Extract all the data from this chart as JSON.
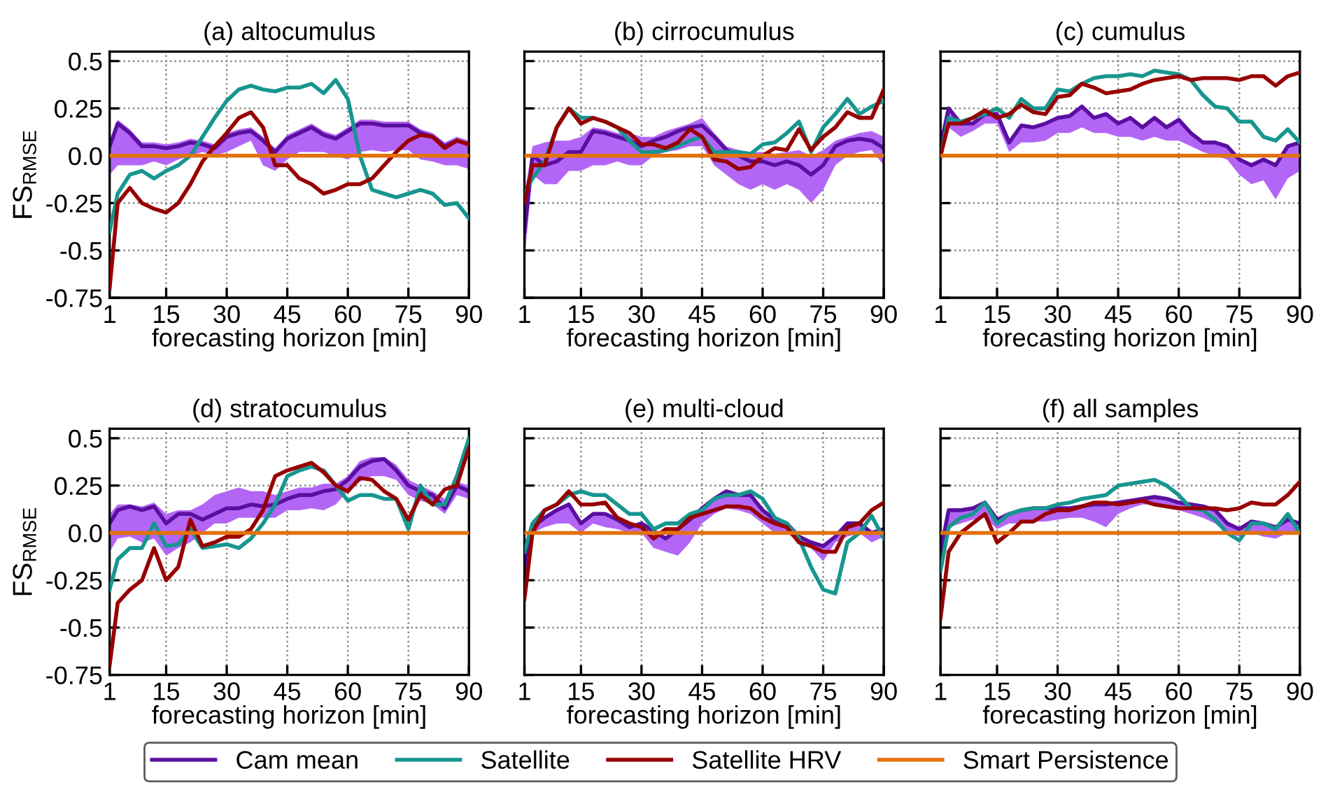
{
  "chart_data": [
    {
      "type": "line",
      "title": "(a) altocumulus",
      "xlabel": "forecasting horizon [min]",
      "ylabel": "FS$_{RMSE}$",
      "xlim": [
        1,
        90
      ],
      "ylim": [
        -0.75,
        0.55
      ],
      "xticks": [
        1,
        15,
        30,
        45,
        60,
        75,
        90
      ],
      "yticks": [
        {
          "value": -0.75,
          "label": "-0.75"
        },
        {
          "value": -0.5,
          "label": "-0.5"
        },
        {
          "value": -0.25,
          "label": "-0.25"
        },
        {
          "value": 0,
          "label": "0.0"
        },
        {
          "value": 0.25,
          "label": "0.25"
        },
        {
          "value": 0.5,
          "label": "0.5"
        }
      ],
      "grid": true,
      "legend": "bottom",
      "line_style": "solid",
      "marker": "none",
      "x": [
        1,
        3,
        6,
        9,
        12,
        15,
        18,
        21,
        24,
        27,
        30,
        33,
        36,
        39,
        42,
        45,
        48,
        51,
        54,
        57,
        60,
        63,
        66,
        69,
        72,
        75,
        78,
        81,
        84,
        87,
        90
      ],
      "series": [
        {
          "name": "Cam mean",
          "color": "#5a0fa0",
          "values": [
            0.05,
            0.17,
            0.12,
            0.05,
            0.05,
            0.04,
            0.05,
            0.07,
            0.06,
            0.04,
            0.1,
            0.12,
            0.13,
            0.08,
            0.02,
            0.09,
            0.12,
            0.15,
            0.11,
            0.09,
            0.13,
            0.17,
            0.17,
            0.16,
            0.16,
            0.16,
            0.12,
            0.1,
            0.05,
            0.08,
            0.06
          ],
          "lower": [
            -0.1,
            -0.05,
            -0.05,
            -0.05,
            -0.03,
            -0.05,
            -0.02,
            0.0,
            0.02,
            0.0,
            0.02,
            0.05,
            0.08,
            -0.05,
            -0.08,
            -0.02,
            0.02,
            0.02,
            0.02,
            0.0,
            -0.02,
            0.02,
            0.03,
            0.02,
            0.03,
            0.03,
            -0.02,
            -0.03,
            -0.05,
            -0.05,
            -0.07
          ],
          "upper": [
            0.07,
            0.19,
            0.14,
            0.07,
            0.07,
            0.06,
            0.07,
            0.09,
            0.08,
            0.06,
            0.12,
            0.14,
            0.15,
            0.1,
            0.04,
            0.11,
            0.14,
            0.17,
            0.13,
            0.11,
            0.15,
            0.19,
            0.19,
            0.18,
            0.18,
            0.18,
            0.14,
            0.12,
            0.07,
            0.1,
            0.08
          ]
        },
        {
          "name": "Satellite",
          "color": "#16968f",
          "values": [
            -0.4,
            -0.2,
            -0.1,
            -0.08,
            -0.12,
            -0.08,
            -0.05,
            0.0,
            0.1,
            0.2,
            0.29,
            0.35,
            0.37,
            0.35,
            0.34,
            0.36,
            0.36,
            0.38,
            0.33,
            0.4,
            0.3,
            0.0,
            -0.18,
            -0.2,
            -0.22,
            -0.2,
            -0.18,
            -0.2,
            -0.26,
            -0.25,
            -0.33
          ]
        },
        {
          "name": "Satellite HRV",
          "color": "#980000",
          "values": [
            -0.7,
            -0.25,
            -0.17,
            -0.25,
            -0.28,
            -0.3,
            -0.25,
            -0.15,
            -0.03,
            0.05,
            0.12,
            0.2,
            0.23,
            0.15,
            -0.05,
            -0.05,
            -0.12,
            -0.15,
            -0.2,
            -0.18,
            -0.15,
            -0.15,
            -0.12,
            -0.05,
            0.02,
            0.08,
            0.11,
            0.1,
            0.04,
            0.08,
            0.06
          ]
        },
        {
          "name": "Smart Persistence",
          "color": "#e2720f",
          "values": [
            0,
            0,
            0,
            0,
            0,
            0,
            0,
            0,
            0,
            0,
            0,
            0,
            0,
            0,
            0,
            0,
            0,
            0,
            0,
            0,
            0,
            0,
            0,
            0,
            0,
            0,
            0,
            0,
            0,
            0,
            0
          ]
        }
      ]
    },
    {
      "type": "line",
      "title": "(b) cirrocumulus",
      "xlabel": "forecasting horizon [min]",
      "xlim": [
        1,
        90
      ],
      "ylim": [
        -0.75,
        0.55
      ],
      "xticks": [
        1,
        15,
        30,
        45,
        60,
        75,
        90
      ],
      "yticks": [
        {
          "value": -0.75,
          "label": null
        },
        {
          "value": -0.5,
          "label": null
        },
        {
          "value": -0.25,
          "label": null
        },
        {
          "value": 0,
          "label": null
        },
        {
          "value": 0.25,
          "label": null
        },
        {
          "value": 0.5,
          "label": null
        }
      ],
      "tick_labels": "x",
      "grid": true,
      "line_style": "solid",
      "marker": "none",
      "x": [
        1,
        3,
        6,
        9,
        12,
        15,
        18,
        21,
        24,
        27,
        30,
        33,
        36,
        39,
        42,
        45,
        48,
        51,
        54,
        57,
        60,
        63,
        66,
        69,
        72,
        75,
        78,
        81,
        84,
        87,
        90
      ],
      "series": [
        {
          "color": "#5a0fa0",
          "values": [
            -0.4,
            0.0,
            -0.05,
            -0.03,
            0.02,
            0.02,
            0.13,
            0.12,
            0.1,
            0.08,
            0.05,
            0.08,
            0.1,
            0.13,
            0.15,
            0.16,
            0.1,
            0.03,
            0.0,
            -0.03,
            -0.03,
            -0.05,
            -0.03,
            -0.05,
            -0.1,
            -0.05,
            0.05,
            0.08,
            0.09,
            0.08,
            0.04
          ],
          "lower": [
            -0.55,
            -0.1,
            -0.15,
            -0.15,
            -0.08,
            -0.08,
            -0.05,
            -0.05,
            -0.03,
            -0.05,
            -0.05,
            0.0,
            0.02,
            0.03,
            0.05,
            0.05,
            -0.05,
            -0.1,
            -0.15,
            -0.18,
            -0.15,
            -0.18,
            -0.15,
            -0.18,
            -0.25,
            -0.18,
            -0.05,
            0.0,
            0.02,
            0.03,
            -0.05
          ],
          "upper": [
            -0.2,
            0.05,
            0.07,
            0.08,
            0.08,
            0.1,
            0.15,
            0.14,
            0.12,
            0.12,
            0.1,
            0.1,
            0.13,
            0.15,
            0.17,
            0.2,
            0.12,
            0.05,
            0.03,
            0.02,
            0.02,
            0.01,
            0.02,
            0.03,
            0.0,
            0.03,
            0.08,
            0.1,
            0.12,
            0.13,
            0.1
          ]
        },
        {
          "color": "#16968f",
          "values": [
            -0.2,
            -0.12,
            -0.03,
            0.15,
            0.25,
            0.2,
            0.2,
            0.18,
            0.15,
            0.08,
            0.02,
            0.02,
            0.03,
            0.05,
            0.08,
            0.1,
            0.02,
            0.02,
            0.02,
            0.01,
            0.06,
            0.07,
            0.12,
            0.18,
            0.02,
            0.15,
            0.22,
            0.3,
            0.22,
            0.26,
            0.29
          ]
        },
        {
          "color": "#980000",
          "values": [
            -0.25,
            -0.05,
            -0.05,
            0.15,
            0.25,
            0.17,
            0.2,
            0.18,
            0.15,
            0.12,
            0.06,
            0.06,
            0.04,
            0.07,
            0.14,
            0.1,
            -0.02,
            -0.03,
            -0.07,
            -0.06,
            0.0,
            0.04,
            0.03,
            0.14,
            0.03,
            0.1,
            0.15,
            0.23,
            0.2,
            0.2,
            0.35
          ]
        },
        {
          "color": "#e2720f",
          "values": [
            0,
            0,
            0,
            0,
            0,
            0,
            0,
            0,
            0,
            0,
            0,
            0,
            0,
            0,
            0,
            0,
            0,
            0,
            0,
            0,
            0,
            0,
            0,
            0,
            0,
            0,
            0,
            0,
            0,
            0,
            0
          ]
        }
      ]
    },
    {
      "type": "line",
      "title": "(c) cumulus",
      "xlabel": "forecasting horizon [min]",
      "xlim": [
        1,
        90
      ],
      "ylim": [
        -0.75,
        0.55
      ],
      "xticks": [
        1,
        15,
        30,
        45,
        60,
        75,
        90
      ],
      "yticks": [
        {
          "value": -0.75,
          "label": null
        },
        {
          "value": -0.5,
          "label": null
        },
        {
          "value": -0.25,
          "label": null
        },
        {
          "value": 0,
          "label": null
        },
        {
          "value": 0.25,
          "label": null
        },
        {
          "value": 0.5,
          "label": null
        }
      ],
      "tick_labels": "x",
      "grid": true,
      "line_style": "solid",
      "marker": "none",
      "x": [
        1,
        3,
        6,
        9,
        12,
        15,
        18,
        21,
        24,
        27,
        30,
        33,
        36,
        39,
        42,
        45,
        48,
        51,
        54,
        57,
        60,
        63,
        66,
        69,
        72,
        75,
        78,
        81,
        84,
        87,
        90
      ],
      "series": [
        {
          "color": "#5a0fa0",
          "values": [
            0.05,
            0.25,
            0.17,
            0.17,
            0.22,
            0.22,
            0.07,
            0.16,
            0.15,
            0.17,
            0.2,
            0.21,
            0.26,
            0.2,
            0.22,
            0.17,
            0.2,
            0.15,
            0.2,
            0.15,
            0.19,
            0.12,
            0.07,
            0.07,
            0.05,
            -0.02,
            -0.05,
            -0.02,
            -0.05,
            0.05,
            0.07
          ],
          "lower": [
            -0.05,
            0.15,
            0.1,
            0.13,
            0.17,
            0.17,
            0.02,
            0.07,
            0.07,
            0.08,
            0.12,
            0.12,
            0.15,
            0.12,
            0.12,
            0.1,
            0.1,
            0.08,
            0.1,
            0.08,
            0.08,
            0.05,
            0.02,
            0.0,
            -0.02,
            -0.1,
            -0.15,
            -0.13,
            -0.23,
            -0.12,
            -0.08
          ],
          "upper": [
            0.06,
            0.26,
            0.18,
            0.18,
            0.23,
            0.23,
            0.08,
            0.17,
            0.16,
            0.18,
            0.21,
            0.22,
            0.27,
            0.21,
            0.23,
            0.18,
            0.21,
            0.16,
            0.21,
            0.16,
            0.2,
            0.13,
            0.08,
            0.08,
            0.06,
            -0.01,
            -0.04,
            -0.01,
            -0.04,
            0.06,
            0.08
          ]
        },
        {
          "color": "#16968f",
          "values": [
            0.0,
            0.2,
            0.18,
            0.2,
            0.22,
            0.25,
            0.2,
            0.3,
            0.25,
            0.25,
            0.35,
            0.34,
            0.38,
            0.41,
            0.42,
            0.42,
            0.43,
            0.42,
            0.45,
            0.44,
            0.43,
            0.4,
            0.32,
            0.26,
            0.25,
            0.18,
            0.18,
            0.1,
            0.08,
            0.14,
            0.07
          ]
        },
        {
          "color": "#980000",
          "values": [
            0.0,
            0.17,
            0.17,
            0.2,
            0.24,
            0.2,
            0.22,
            0.27,
            0.23,
            0.22,
            0.31,
            0.32,
            0.38,
            0.36,
            0.33,
            0.34,
            0.35,
            0.38,
            0.4,
            0.41,
            0.42,
            0.4,
            0.41,
            0.41,
            0.41,
            0.4,
            0.42,
            0.42,
            0.37,
            0.42,
            0.44
          ]
        },
        {
          "color": "#e2720f",
          "values": [
            0,
            0,
            0,
            0,
            0,
            0,
            0,
            0,
            0,
            0,
            0,
            0,
            0,
            0,
            0,
            0,
            0,
            0,
            0,
            0,
            0,
            0,
            0,
            0,
            0,
            0,
            0,
            0,
            0,
            0,
            0
          ]
        }
      ]
    },
    {
      "type": "line",
      "title": "(d) stratocumulus",
      "xlabel": "forecasting horizon [min]",
      "ylabel": "FS$_{RMSE}$",
      "xlim": [
        1,
        90
      ],
      "ylim": [
        -0.75,
        0.55
      ],
      "xticks": [
        1,
        15,
        30,
        45,
        60,
        75,
        90
      ],
      "yticks": [
        {
          "value": -0.75,
          "label": "-0.75"
        },
        {
          "value": -0.5,
          "label": "-0.5"
        },
        {
          "value": -0.25,
          "label": "-0.25"
        },
        {
          "value": 0,
          "label": "0.0"
        },
        {
          "value": 0.25,
          "label": "0.25"
        },
        {
          "value": 0.5,
          "label": "0.5"
        }
      ],
      "grid": true,
      "line_style": "solid",
      "marker": "none",
      "x": [
        1,
        3,
        6,
        9,
        12,
        15,
        18,
        21,
        24,
        27,
        30,
        33,
        36,
        39,
        42,
        45,
        48,
        51,
        54,
        57,
        60,
        63,
        66,
        69,
        72,
        75,
        78,
        81,
        84,
        87,
        90
      ],
      "series": [
        {
          "color": "#5a0fa0",
          "values": [
            0.05,
            0.12,
            0.14,
            0.12,
            0.14,
            0.05,
            0.1,
            0.1,
            0.07,
            0.1,
            0.13,
            0.13,
            0.15,
            0.14,
            0.15,
            0.18,
            0.2,
            0.2,
            0.22,
            0.23,
            0.28,
            0.35,
            0.38,
            0.39,
            0.33,
            0.25,
            0.22,
            0.2,
            0.13,
            0.25,
            0.22
          ],
          "lower": [
            -0.1,
            -0.03,
            -0.02,
            -0.05,
            -0.03,
            -0.12,
            -0.08,
            -0.05,
            0.0,
            0.05,
            0.05,
            0.08,
            0.08,
            0.08,
            0.08,
            0.12,
            0.12,
            0.13,
            0.12,
            0.15,
            0.22,
            0.27,
            0.3,
            0.3,
            0.28,
            0.2,
            0.17,
            0.15,
            0.1,
            0.2,
            0.18
          ],
          "upper": [
            0.1,
            0.15,
            0.15,
            0.14,
            0.16,
            0.1,
            0.12,
            0.12,
            0.15,
            0.2,
            0.22,
            0.24,
            0.22,
            0.22,
            0.2,
            0.22,
            0.24,
            0.24,
            0.26,
            0.26,
            0.3,
            0.38,
            0.4,
            0.4,
            0.36,
            0.28,
            0.25,
            0.22,
            0.18,
            0.27,
            0.25
          ]
        },
        {
          "color": "#16968f",
          "values": [
            -0.3,
            -0.14,
            -0.08,
            -0.08,
            0.05,
            -0.07,
            -0.06,
            0.02,
            -0.08,
            -0.07,
            -0.06,
            -0.08,
            -0.03,
            0.05,
            0.15,
            0.3,
            0.33,
            0.35,
            0.33,
            0.25,
            0.17,
            0.2,
            0.2,
            0.18,
            0.18,
            0.02,
            0.25,
            0.15,
            0.15,
            0.3,
            0.5
          ]
        },
        {
          "color": "#980000",
          "values": [
            -0.7,
            -0.37,
            -0.3,
            -0.25,
            -0.08,
            -0.25,
            -0.18,
            0.07,
            -0.07,
            -0.05,
            -0.02,
            -0.02,
            0.02,
            0.12,
            0.3,
            0.33,
            0.35,
            0.37,
            0.32,
            0.25,
            0.22,
            0.29,
            0.28,
            0.22,
            0.18,
            0.07,
            0.2,
            0.15,
            0.23,
            0.25,
            0.45
          ]
        },
        {
          "color": "#e2720f",
          "values": [
            0,
            0,
            0,
            0,
            0,
            0,
            0,
            0,
            0,
            0,
            0,
            0,
            0,
            0,
            0,
            0,
            0,
            0,
            0,
            0,
            0,
            0,
            0,
            0,
            0,
            0,
            0,
            0,
            0,
            0,
            0
          ]
        }
      ]
    },
    {
      "type": "line",
      "title": "(e) multi-cloud",
      "xlabel": "forecasting horizon [min]",
      "xlim": [
        1,
        90
      ],
      "ylim": [
        -0.75,
        0.55
      ],
      "xticks": [
        1,
        15,
        30,
        45,
        60,
        75,
        90
      ],
      "yticks": [
        {
          "value": -0.75,
          "label": null
        },
        {
          "value": -0.5,
          "label": null
        },
        {
          "value": -0.25,
          "label": null
        },
        {
          "value": 0,
          "label": null
        },
        {
          "value": 0.25,
          "label": null
        },
        {
          "value": 0.5,
          "label": null
        }
      ],
      "tick_labels": "x",
      "grid": true,
      "line_style": "solid",
      "marker": "none",
      "x": [
        1,
        3,
        6,
        9,
        12,
        15,
        18,
        21,
        24,
        27,
        30,
        33,
        36,
        39,
        42,
        45,
        48,
        51,
        54,
        57,
        60,
        63,
        66,
        69,
        72,
        75,
        78,
        81,
        84,
        87,
        90
      ],
      "series": [
        {
          "color": "#5a0fa0",
          "values": [
            -0.2,
            0.03,
            0.08,
            0.12,
            0.15,
            0.05,
            0.1,
            0.1,
            0.07,
            0.03,
            0.05,
            0.01,
            -0.03,
            0.02,
            0.07,
            0.13,
            0.18,
            0.22,
            0.2,
            0.2,
            0.12,
            0.07,
            0.05,
            -0.02,
            -0.05,
            -0.07,
            -0.02,
            0.05,
            0.05,
            0.0,
            0.02
          ],
          "lower": [
            -0.3,
            0.0,
            0.03,
            0.05,
            0.05,
            0.0,
            0.05,
            0.03,
            0.02,
            0.0,
            0.0,
            -0.08,
            -0.1,
            -0.12,
            -0.05,
            0.05,
            0.1,
            0.13,
            0.12,
            0.1,
            0.05,
            0.0,
            0.0,
            -0.05,
            -0.08,
            -0.15,
            -0.05,
            -0.02,
            0.0,
            -0.05,
            -0.02
          ],
          "upper": [
            -0.19,
            0.04,
            0.09,
            0.13,
            0.16,
            0.06,
            0.11,
            0.11,
            0.08,
            0.04,
            0.06,
            0.02,
            -0.02,
            0.03,
            0.08,
            0.14,
            0.19,
            0.23,
            0.21,
            0.21,
            0.13,
            0.08,
            0.06,
            -0.01,
            -0.04,
            -0.06,
            -0.01,
            0.06,
            0.06,
            0.01,
            0.03
          ]
        },
        {
          "color": "#16968f",
          "values": [
            -0.1,
            0.05,
            0.12,
            0.15,
            0.2,
            0.22,
            0.2,
            0.2,
            0.15,
            0.1,
            0.1,
            0.02,
            0.05,
            0.05,
            0.1,
            0.12,
            0.18,
            0.2,
            0.2,
            0.22,
            0.18,
            0.08,
            0.05,
            -0.03,
            -0.18,
            -0.3,
            -0.32,
            -0.05,
            0.0,
            0.09,
            -0.03
          ]
        },
        {
          "color": "#980000",
          "values": [
            -0.35,
            0.0,
            0.12,
            0.15,
            0.22,
            0.15,
            0.15,
            0.16,
            0.08,
            0.05,
            0.03,
            -0.03,
            0.02,
            0.02,
            0.08,
            0.1,
            0.12,
            0.14,
            0.14,
            0.13,
            0.08,
            0.05,
            0.03,
            -0.05,
            -0.07,
            -0.1,
            -0.1,
            0.03,
            0.05,
            0.12,
            0.16
          ]
        },
        {
          "color": "#e2720f",
          "values": [
            0,
            0,
            0,
            0,
            0,
            0,
            0,
            0,
            0,
            0,
            0,
            0,
            0,
            0,
            0,
            0,
            0,
            0,
            0,
            0,
            0,
            0,
            0,
            0,
            0,
            0,
            0,
            0,
            0,
            0,
            0
          ]
        }
      ]
    },
    {
      "type": "line",
      "title": "(f) all samples",
      "xlabel": "forecasting horizon [min]",
      "xlim": [
        1,
        90
      ],
      "ylim": [
        -0.75,
        0.55
      ],
      "xticks": [
        1,
        15,
        30,
        45,
        60,
        75,
        90
      ],
      "yticks": [
        {
          "value": -0.75,
          "label": null
        },
        {
          "value": -0.5,
          "label": null
        },
        {
          "value": -0.25,
          "label": null
        },
        {
          "value": 0,
          "label": null
        },
        {
          "value": 0.25,
          "label": null
        },
        {
          "value": 0.5,
          "label": null
        }
      ],
      "tick_labels": "x",
      "grid": true,
      "line_style": "solid",
      "marker": "none",
      "x": [
        1,
        3,
        6,
        9,
        12,
        15,
        18,
        21,
        24,
        27,
        30,
        33,
        36,
        39,
        42,
        45,
        48,
        51,
        54,
        57,
        60,
        63,
        66,
        69,
        72,
        75,
        78,
        81,
        84,
        87,
        90
      ],
      "series": [
        {
          "color": "#5a0fa0",
          "values": [
            -0.1,
            0.12,
            0.12,
            0.13,
            0.16,
            0.07,
            0.1,
            0.12,
            0.13,
            0.13,
            0.13,
            0.13,
            0.14,
            0.15,
            0.15,
            0.16,
            0.17,
            0.18,
            0.19,
            0.18,
            0.16,
            0.15,
            0.14,
            0.12,
            0.05,
            0.02,
            0.06,
            0.05,
            0.03,
            0.07,
            0.05
          ],
          "lower": [
            -0.1,
            0.03,
            0.05,
            0.07,
            0.08,
            0.02,
            0.05,
            0.05,
            0.06,
            0.06,
            0.07,
            0.08,
            0.08,
            0.06,
            0.03,
            0.1,
            0.13,
            0.15,
            0.15,
            0.13,
            0.12,
            0.1,
            0.08,
            0.05,
            0.0,
            -0.02,
            0.0,
            -0.02,
            -0.03,
            0.0,
            0.0
          ],
          "upper": [
            -0.09,
            0.13,
            0.13,
            0.14,
            0.17,
            0.08,
            0.11,
            0.13,
            0.14,
            0.14,
            0.14,
            0.14,
            0.15,
            0.16,
            0.16,
            0.17,
            0.18,
            0.19,
            0.2,
            0.19,
            0.17,
            0.16,
            0.15,
            0.13,
            0.06,
            0.03,
            0.07,
            0.06,
            0.04,
            0.08,
            0.06
          ]
        },
        {
          "color": "#16968f",
          "values": [
            -0.2,
            0.03,
            0.08,
            0.1,
            0.16,
            0.05,
            0.1,
            0.12,
            0.13,
            0.13,
            0.15,
            0.16,
            0.18,
            0.19,
            0.2,
            0.25,
            0.26,
            0.27,
            0.28,
            0.25,
            0.2,
            0.13,
            0.12,
            0.07,
            0.0,
            -0.04,
            0.05,
            0.05,
            0.02,
            0.1,
            0.0
          ]
        },
        {
          "color": "#980000",
          "values": [
            -0.45,
            -0.1,
            0.0,
            0.05,
            0.1,
            -0.05,
            0.0,
            0.06,
            0.06,
            0.1,
            0.12,
            0.12,
            0.14,
            0.16,
            0.16,
            0.15,
            0.16,
            0.17,
            0.15,
            0.14,
            0.13,
            0.13,
            0.13,
            0.13,
            0.12,
            0.13,
            0.16,
            0.15,
            0.15,
            0.2,
            0.27
          ]
        },
        {
          "color": "#e2720f",
          "values": [
            0,
            0,
            0,
            0,
            0,
            0,
            0,
            0,
            0,
            0,
            0,
            0,
            0,
            0,
            0,
            0,
            0,
            0,
            0,
            0,
            0,
            0,
            0,
            0,
            0,
            0,
            0,
            0,
            0,
            0,
            0
          ]
        }
      ]
    }
  ]
}
